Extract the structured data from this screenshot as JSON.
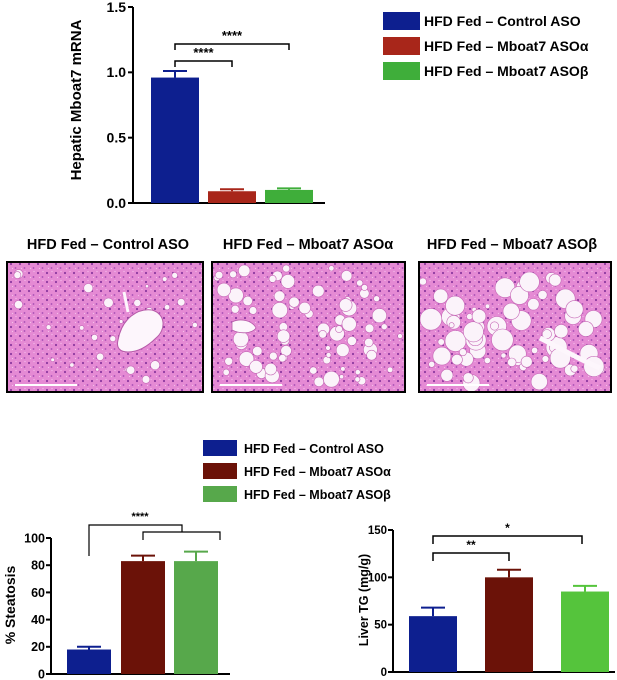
{
  "colors": {
    "control": "#0d1f8f",
    "aso_alpha_top": "#a8261a",
    "aso_beta_top": "#3fae3a",
    "aso_alpha_bottom": "#6b1208",
    "aso_beta_bottom": "#57a84b",
    "aso_beta_tg": "#55c43c",
    "tissue_pink": "#e07fcf",
    "tissue_purple": "#9a3fa8"
  },
  "top_legend": [
    {
      "label": "HFD Fed – Control ASO",
      "color": "#0d1f8f"
    },
    {
      "label": "HFD Fed – Mboat7 ASOα",
      "color": "#a8261a"
    },
    {
      "label": "HFD Fed – Mboat7 ASOβ",
      "color": "#3fae3a"
    }
  ],
  "bottom_legend": [
    {
      "label": "HFD Fed – Control ASO",
      "color": "#0d1f8f"
    },
    {
      "label": "HFD Fed – Mboat7 ASOα",
      "color": "#6b1208"
    },
    {
      "label": "HFD Fed – Mboat7 ASOβ",
      "color": "#57a84b"
    }
  ],
  "histology": {
    "panels": [
      {
        "title": "HFD Fed – Control ASO",
        "steatosis": "low"
      },
      {
        "title": "HFD Fed – Mboat7 ASOα",
        "steatosis": "high"
      },
      {
        "title": "HFD Fed – Mboat7 ASOβ",
        "steatosis": "high"
      }
    ]
  },
  "chart_data": [
    {
      "id": "mrna",
      "type": "bar",
      "ylabel": "Hepatic Mboat7 mRNA",
      "ylim": [
        0,
        1.5
      ],
      "yticks": [
        "0.0",
        "0.5",
        "1.0",
        "1.5"
      ],
      "categories": [
        "HFD Fed – Control ASO",
        "HFD Fed – Mboat7 ASOα",
        "HFD Fed – Mboat7 ASOβ"
      ],
      "values": [
        0.96,
        0.09,
        0.1
      ],
      "errors": [
        0.05,
        0.015,
        0.012
      ],
      "significance": [
        {
          "from": 0,
          "to": 1,
          "label": "****"
        },
        {
          "from": 0,
          "to": 2,
          "label": "****"
        }
      ]
    },
    {
      "id": "steatosis",
      "type": "bar",
      "ylabel": "% Steatosis",
      "ylim": [
        0,
        100
      ],
      "yticks": [
        "0",
        "20",
        "40",
        "60",
        "80",
        "100"
      ],
      "categories": [
        "HFD Fed – Control ASO",
        "HFD Fed – Mboat7 ASOα",
        "HFD Fed – Mboat7 ASOβ"
      ],
      "values": [
        18,
        83,
        83
      ],
      "errors": [
        2,
        4,
        7
      ],
      "significance": [
        {
          "from": 0,
          "to": "1-2",
          "label": "****"
        }
      ]
    },
    {
      "id": "tg",
      "type": "bar",
      "ylabel": "Liver TG (mg/g)",
      "ylim": [
        0,
        150
      ],
      "yticks": [
        "0",
        "50",
        "100",
        "150"
      ],
      "categories": [
        "HFD Fed – Control ASO",
        "HFD Fed – Mboat7 ASOα",
        "HFD Fed – Mboat7 ASOβ"
      ],
      "values": [
        59,
        100,
        85
      ],
      "errors": [
        9,
        8,
        6
      ],
      "significance": [
        {
          "from": 0,
          "to": 1,
          "label": "**"
        },
        {
          "from": 0,
          "to": 2,
          "label": "*"
        }
      ]
    }
  ]
}
